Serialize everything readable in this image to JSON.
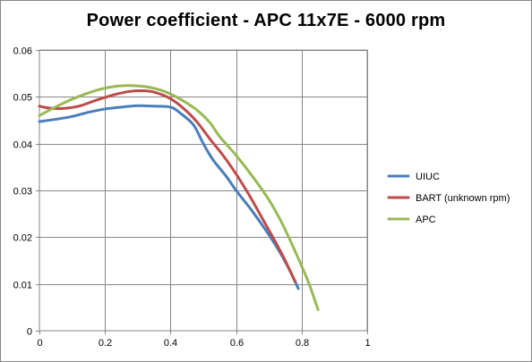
{
  "chart_data": {
    "type": "line",
    "title": "Power coefficient - APC 11x7E - 6000 rpm",
    "xlabel": "",
    "ylabel": "",
    "xlim": [
      0,
      1
    ],
    "ylim": [
      0,
      0.06
    ],
    "x_ticks": [
      0,
      0.2,
      0.4,
      0.6,
      0.8,
      1
    ],
    "y_ticks": [
      0,
      0.01,
      0.02,
      0.03,
      0.04,
      0.05,
      0.06
    ],
    "x_tick_labels": [
      "0",
      "0.2",
      "0.4",
      "0.6",
      "0.8",
      "1"
    ],
    "y_tick_labels": [
      "0",
      "0.01",
      "0.02",
      "0.03",
      "0.04",
      "0.05",
      "0.06"
    ],
    "grid": true,
    "legend_position": "right",
    "series": [
      {
        "name": "UIUC",
        "color": "#4a7ebb",
        "points": [
          [
            0.0,
            0.0447
          ],
          [
            0.05,
            0.0452
          ],
          [
            0.1,
            0.0458
          ],
          [
            0.15,
            0.0467
          ],
          [
            0.2,
            0.0474
          ],
          [
            0.25,
            0.0478
          ],
          [
            0.3,
            0.0481
          ],
          [
            0.35,
            0.048
          ],
          [
            0.4,
            0.0478
          ],
          [
            0.43,
            0.0465
          ],
          [
            0.47,
            0.044
          ],
          [
            0.5,
            0.04
          ],
          [
            0.53,
            0.0365
          ],
          [
            0.57,
            0.033
          ],
          [
            0.6,
            0.03
          ],
          [
            0.65,
            0.0255
          ],
          [
            0.7,
            0.0205
          ],
          [
            0.74,
            0.016
          ],
          [
            0.77,
            0.012
          ],
          [
            0.79,
            0.009
          ]
        ]
      },
      {
        "name": "BART (unknown rpm)",
        "color": "#be4b48",
        "points": [
          [
            0.0,
            0.048
          ],
          [
            0.03,
            0.0476
          ],
          [
            0.07,
            0.0475
          ],
          [
            0.12,
            0.048
          ],
          [
            0.17,
            0.0492
          ],
          [
            0.22,
            0.0503
          ],
          [
            0.27,
            0.0511
          ],
          [
            0.31,
            0.0513
          ],
          [
            0.35,
            0.051
          ],
          [
            0.4,
            0.0496
          ],
          [
            0.44,
            0.0475
          ],
          [
            0.48,
            0.0447
          ],
          [
            0.52,
            0.041
          ],
          [
            0.56,
            0.0375
          ],
          [
            0.6,
            0.0335
          ],
          [
            0.64,
            0.029
          ],
          [
            0.68,
            0.024
          ],
          [
            0.72,
            0.019
          ],
          [
            0.75,
            0.015
          ],
          [
            0.78,
            0.0105
          ]
        ]
      },
      {
        "name": "APC",
        "color": "#98b954",
        "points": [
          [
            0.0,
            0.046
          ],
          [
            0.04,
            0.0475
          ],
          [
            0.09,
            0.0492
          ],
          [
            0.14,
            0.0506
          ],
          [
            0.19,
            0.0517
          ],
          [
            0.24,
            0.0523
          ],
          [
            0.28,
            0.0524
          ],
          [
            0.33,
            0.0521
          ],
          [
            0.38,
            0.0512
          ],
          [
            0.43,
            0.0495
          ],
          [
            0.48,
            0.0472
          ],
          [
            0.52,
            0.0445
          ],
          [
            0.55,
            0.0415
          ],
          [
            0.6,
            0.0375
          ],
          [
            0.65,
            0.033
          ],
          [
            0.7,
            0.028
          ],
          [
            0.74,
            0.023
          ],
          [
            0.78,
            0.017
          ],
          [
            0.82,
            0.0105
          ],
          [
            0.85,
            0.0045
          ]
        ]
      }
    ]
  }
}
